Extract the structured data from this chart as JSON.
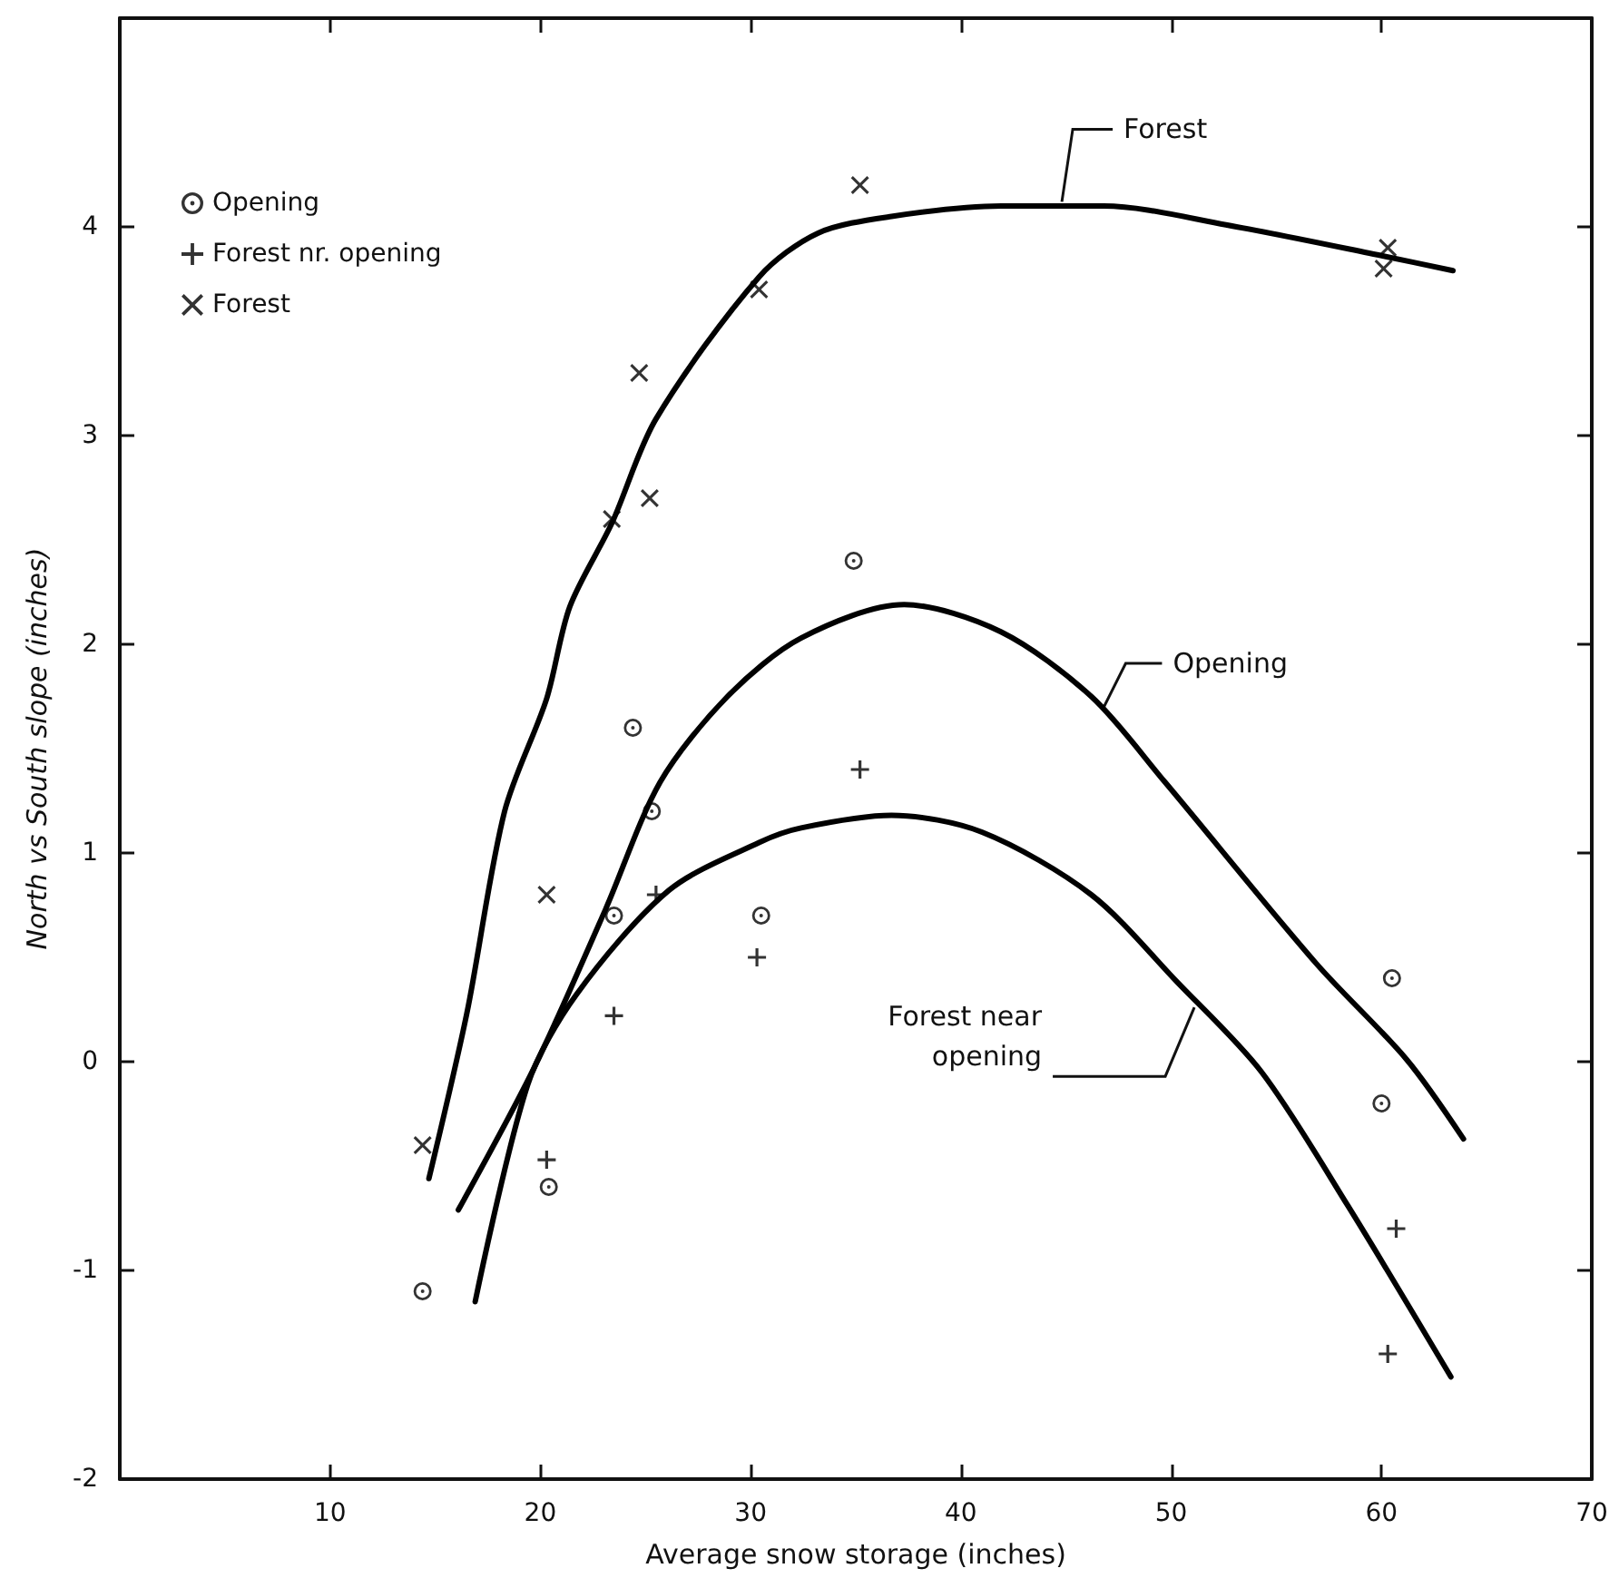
{
  "chart_data": {
    "type": "scatter",
    "xlabel": "Average snow storage (inches)",
    "ylabel": "North vs South slope (inches)",
    "xlim": [
      0,
      70
    ],
    "xticks": [
      10,
      20,
      30,
      40,
      50,
      60,
      70
    ],
    "ylim": [
      -2,
      5
    ],
    "yticks": [
      -2,
      -1,
      0,
      1,
      2,
      3,
      4
    ],
    "grid": false,
    "legend": "top left",
    "series": [
      {
        "name": "Opening",
        "marker": "circle",
        "color": "#000000",
        "x": [
          14.4,
          20.4,
          23.5,
          25.3,
          24.4,
          30.5,
          34.9,
          60.5,
          60.0
        ],
        "values": [
          -1.1,
          -0.6,
          0.7,
          1.2,
          1.6,
          0.7,
          2.4,
          0.4,
          -0.2
        ]
      },
      {
        "name": "Forest nr. opening",
        "marker": "cross",
        "color": "#000000",
        "x": [
          20.3,
          23.5,
          25.5,
          30.3,
          35.2,
          60.7,
          60.3
        ],
        "values": [
          -0.47,
          0.22,
          0.8,
          0.5,
          1.4,
          -0.8,
          -1.4
        ]
      },
      {
        "name": "Forest",
        "marker": "x",
        "color": "#000000",
        "x": [
          14.4,
          20.3,
          23.4,
          24.7,
          25.2,
          30.4,
          35.2,
          60.3,
          60.1
        ],
        "values": [
          -0.4,
          0.8,
          2.6,
          3.3,
          2.7,
          3.7,
          4.2,
          3.9,
          3.8
        ]
      },
      {
        "type": "line",
        "marker": "none",
        "color": "#000000",
        "x": [
          14.7,
          16.5,
          18.3,
          20.3,
          21.4,
          23.4,
          25.5,
          30.4,
          33.2,
          36.7,
          41.9,
          46.8,
          52.6,
          60.1,
          63.4
        ],
        "values": [
          -0.56,
          0.23,
          1.2,
          1.74,
          2.18,
          2.58,
          3.08,
          3.76,
          3.97,
          4.05,
          4.1,
          4.1,
          4.01,
          3.86,
          3.79
        ]
      },
      {
        "type": "line",
        "marker": "none",
        "color": "#000000",
        "x": [
          16.1,
          19.7,
          23.1,
          25.7,
          28.9,
          32.4,
          37.3,
          41.9,
          46.2,
          49.7,
          56.9,
          61.2,
          63.9
        ],
        "values": [
          -0.71,
          -0.03,
          0.73,
          1.34,
          1.75,
          2.03,
          2.19,
          2.06,
          1.75,
          1.34,
          0.47,
          0.01,
          -0.37
        ]
      },
      {
        "type": "line",
        "marker": "none",
        "color": "#000000",
        "x": [
          16.9,
          19.4,
          21.7,
          26.1,
          30.4,
          32.4,
          36.7,
          41.0,
          46.2,
          50.3,
          54.3,
          58.4,
          63.3
        ],
        "values": [
          -1.15,
          -0.11,
          0.32,
          0.82,
          1.05,
          1.12,
          1.18,
          1.1,
          0.8,
          0.38,
          -0.05,
          -0.69,
          -1.51
        ]
      }
    ],
    "annotations": [
      {
        "text": "Forest",
        "x": 44.8,
        "y": 4.12
      },
      {
        "text": "Opening",
        "x": 46.8,
        "y": 1.7
      },
      {
        "text": "Forest near\nopening",
        "x": 51.1,
        "y": 0.26
      }
    ]
  }
}
